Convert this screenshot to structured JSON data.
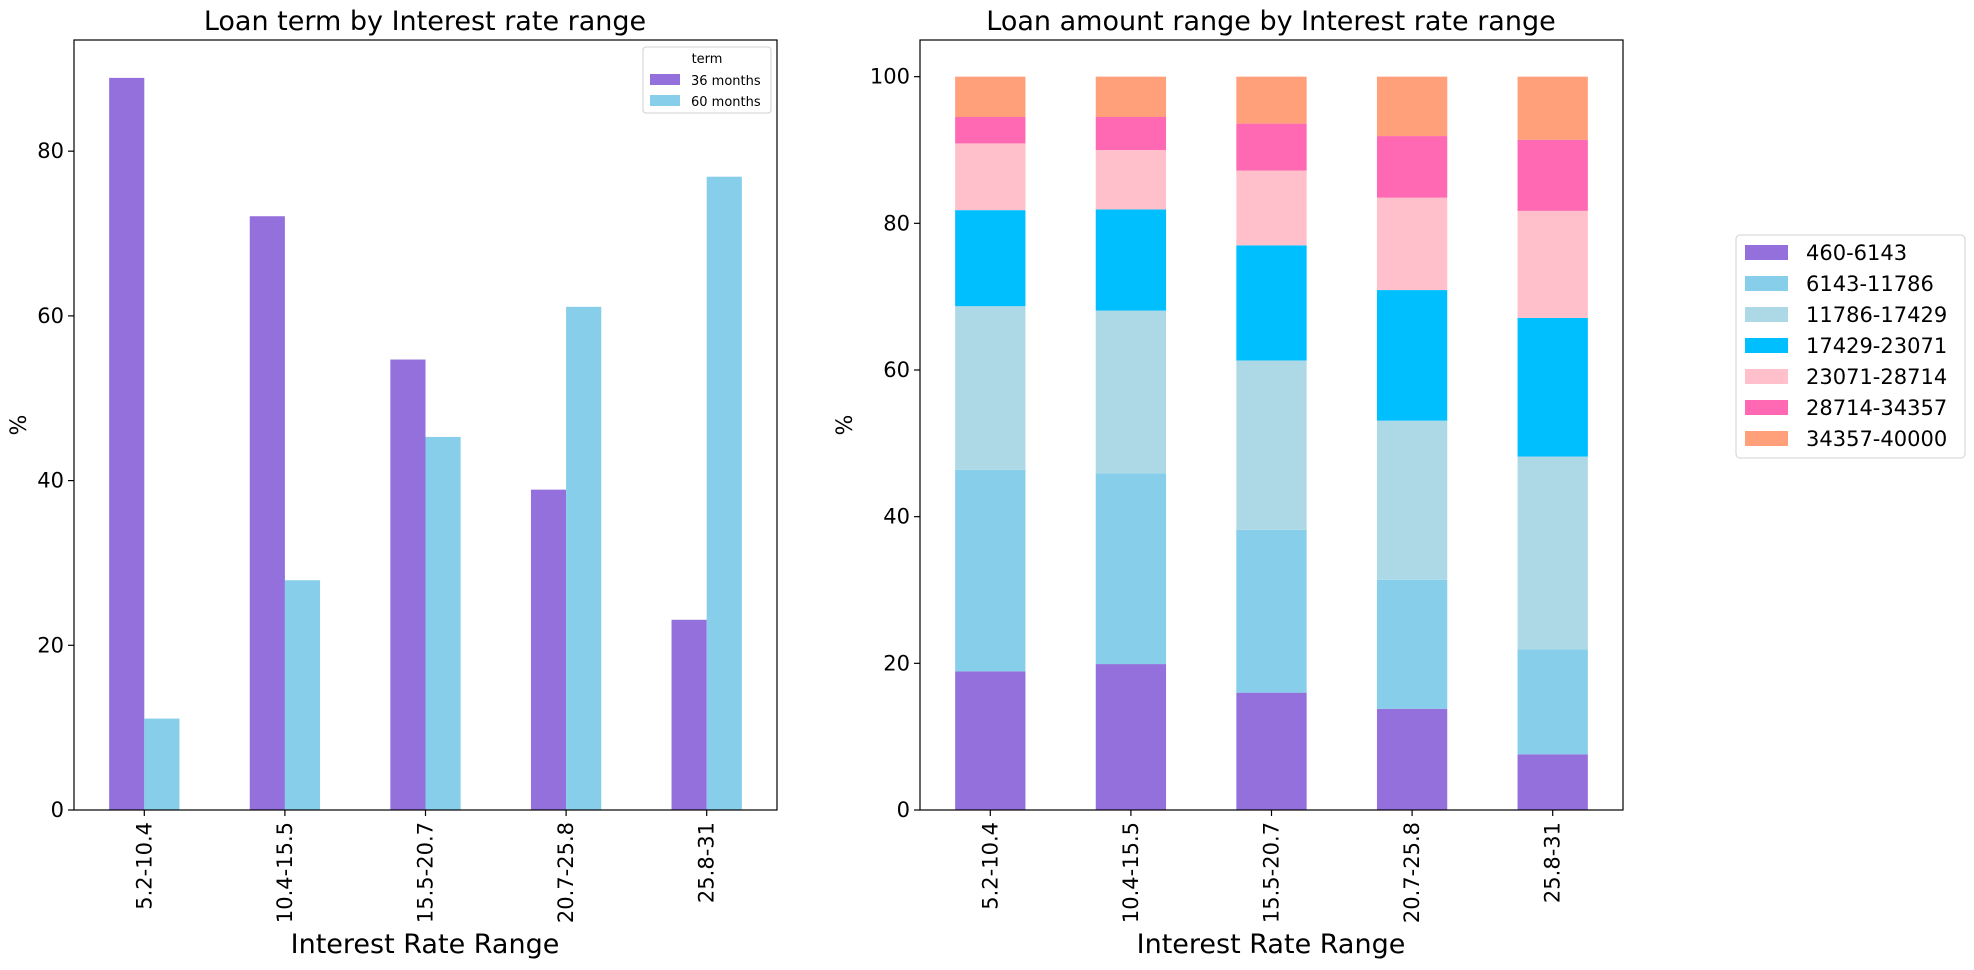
{
  "chart_data": [
    {
      "type": "bar",
      "title": "Loan term by Interest rate range",
      "xlabel": "Interest Rate Range",
      "ylabel": "%",
      "categories": [
        "5.2-10.4",
        "10.4-15.5",
        "15.5-20.7",
        "20.7-25.8",
        "25.8-31"
      ],
      "ylim": [
        0,
        93.5
      ],
      "yticks": [
        0,
        20,
        40,
        60,
        80
      ],
      "legend": {
        "title": "term",
        "placement": "top-right"
      },
      "series": [
        {
          "name": "36 months",
          "color": "#9370DB",
          "values": [
            88.9,
            72.1,
            54.7,
            38.9,
            23.1
          ]
        },
        {
          "name": "60 months",
          "color": "#87CEEB",
          "values": [
            11.1,
            27.9,
            45.3,
            61.1,
            76.9
          ]
        }
      ]
    },
    {
      "type": "bar",
      "stacked": true,
      "title": "Loan amount range by Interest rate range",
      "xlabel": "Interest Rate Range",
      "ylabel": "%",
      "categories": [
        "5.2-10.4",
        "10.4-15.5",
        "15.5-20.7",
        "20.7-25.8",
        "25.8-31"
      ],
      "ylim": [
        0,
        105
      ],
      "yticks": [
        0,
        20,
        40,
        60,
        80,
        100
      ],
      "legend": {
        "placement": "outside-right"
      },
      "series": [
        {
          "name": "460-6143",
          "color": "#9370DB",
          "values": [
            18.9,
            19.9,
            16.0,
            13.8,
            7.6
          ]
        },
        {
          "name": "6143-11786",
          "color": "#87CEEB",
          "values": [
            27.5,
            26.0,
            22.2,
            17.6,
            14.3
          ]
        },
        {
          "name": "11786-17429",
          "color": "#ADD8E6",
          "values": [
            22.3,
            22.2,
            23.1,
            21.7,
            26.3
          ]
        },
        {
          "name": "17429-23071",
          "color": "#00BFFF",
          "values": [
            13.1,
            13.8,
            15.7,
            17.8,
            18.9
          ]
        },
        {
          "name": "23071-28714",
          "color": "#FFC0CB",
          "values": [
            9.1,
            8.1,
            10.2,
            12.6,
            14.6
          ]
        },
        {
          "name": "28714-34357",
          "color": "#FF69B4",
          "values": [
            3.6,
            4.5,
            6.4,
            8.4,
            9.7
          ]
        },
        {
          "name": "34357-40000",
          "color": "#FFA07A",
          "values": [
            5.5,
            5.5,
            6.4,
            8.1,
            8.6
          ]
        }
      ]
    }
  ]
}
